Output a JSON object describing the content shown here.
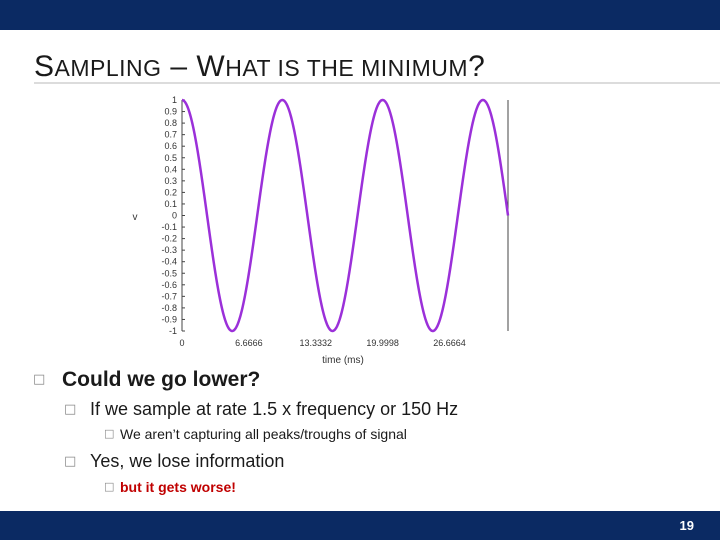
{
  "title": {
    "part1_cap": "S",
    "part1_rest": "AMPLING",
    "dash": " – ",
    "part2_cap": "W",
    "part2_rest": "HAT IS THE MINIMUM",
    "part2_end": "?"
  },
  "chart_data": {
    "type": "line",
    "ylabel": "v",
    "xlabel": "time (ms)",
    "y_ticks": [
      "1",
      "0.9",
      "0.8",
      "0.7",
      "0.6",
      "0.5",
      "0.4",
      "0.3",
      "0.2",
      "0.1",
      "0",
      "-0.1",
      "-0.2",
      "-0.3",
      "-0.4",
      "-0.5",
      "-0.6",
      "-0.7",
      "-0.8",
      "-0.9",
      "-1"
    ],
    "x_ticks": [
      "0",
      "6.6666",
      "13.3332",
      "19.9998",
      "26.6664"
    ],
    "x_tick_values": [
      0,
      6.6666,
      13.3332,
      19.9998,
      26.6664
    ],
    "xlim": [
      0,
      32.5
    ],
    "ylim": [
      -1,
      1
    ],
    "series": [
      {
        "function": "cos",
        "period_ms": 10,
        "color": "#9b30d9"
      }
    ]
  },
  "bullets": {
    "b1": "Could we go lower?",
    "b1_1": "If we sample at rate 1.5 x frequency or 150 Hz",
    "b1_1_1": "We aren’t capturing all peaks/troughs of signal",
    "b1_2": "Yes, we lose information",
    "b1_2_1": "but it gets worse!"
  },
  "footer": {
    "slide_number": "19"
  },
  "colors": {
    "bar": "#0b2a63",
    "accent_red": "#c00000",
    "signal": "#9b30d9"
  }
}
